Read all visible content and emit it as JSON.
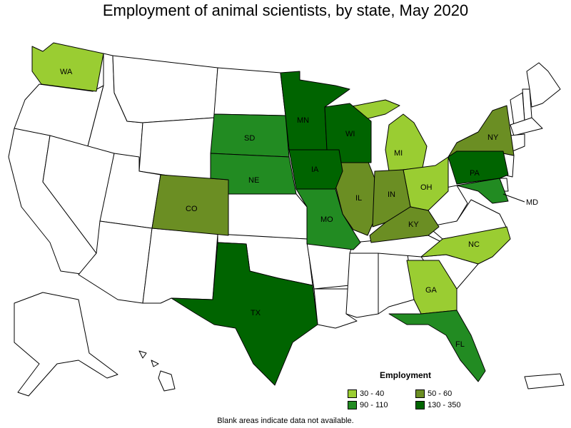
{
  "title": "Employment of animal scientists, by state, May 2020",
  "footnote": "Blank areas indicate data not available.",
  "legend": {
    "title": "Employment",
    "items": [
      {
        "label": "30 - 40",
        "color": "#9acd32"
      },
      {
        "label": "50 - 60",
        "color": "#6b8e23"
      },
      {
        "label": "90 - 110",
        "color": "#228b22"
      },
      {
        "label": "130 - 350",
        "color": "#006400"
      }
    ]
  },
  "states": [
    {
      "abbr": "WA",
      "bin": "30 - 40"
    },
    {
      "abbr": "MI",
      "bin": "30 - 40"
    },
    {
      "abbr": "OH",
      "bin": "30 - 40"
    },
    {
      "abbr": "NC",
      "bin": "30 - 40"
    },
    {
      "abbr": "GA",
      "bin": "30 - 40"
    },
    {
      "abbr": "CO",
      "bin": "50 - 60"
    },
    {
      "abbr": "IL",
      "bin": "50 - 60"
    },
    {
      "abbr": "IN",
      "bin": "50 - 60"
    },
    {
      "abbr": "KY",
      "bin": "50 - 60"
    },
    {
      "abbr": "NY",
      "bin": "50 - 60"
    },
    {
      "abbr": "SD",
      "bin": "90 - 110"
    },
    {
      "abbr": "NE",
      "bin": "90 - 110"
    },
    {
      "abbr": "MO",
      "bin": "90 - 110"
    },
    {
      "abbr": "FL",
      "bin": "90 - 110"
    },
    {
      "abbr": "MD",
      "bin": "90 - 110"
    },
    {
      "abbr": "MN",
      "bin": "130 - 350"
    },
    {
      "abbr": "WI",
      "bin": "130 - 350"
    },
    {
      "abbr": "IA",
      "bin": "130 - 350"
    },
    {
      "abbr": "PA",
      "bin": "130 - 350"
    },
    {
      "abbr": "TX",
      "bin": "130 - 350"
    }
  ]
}
